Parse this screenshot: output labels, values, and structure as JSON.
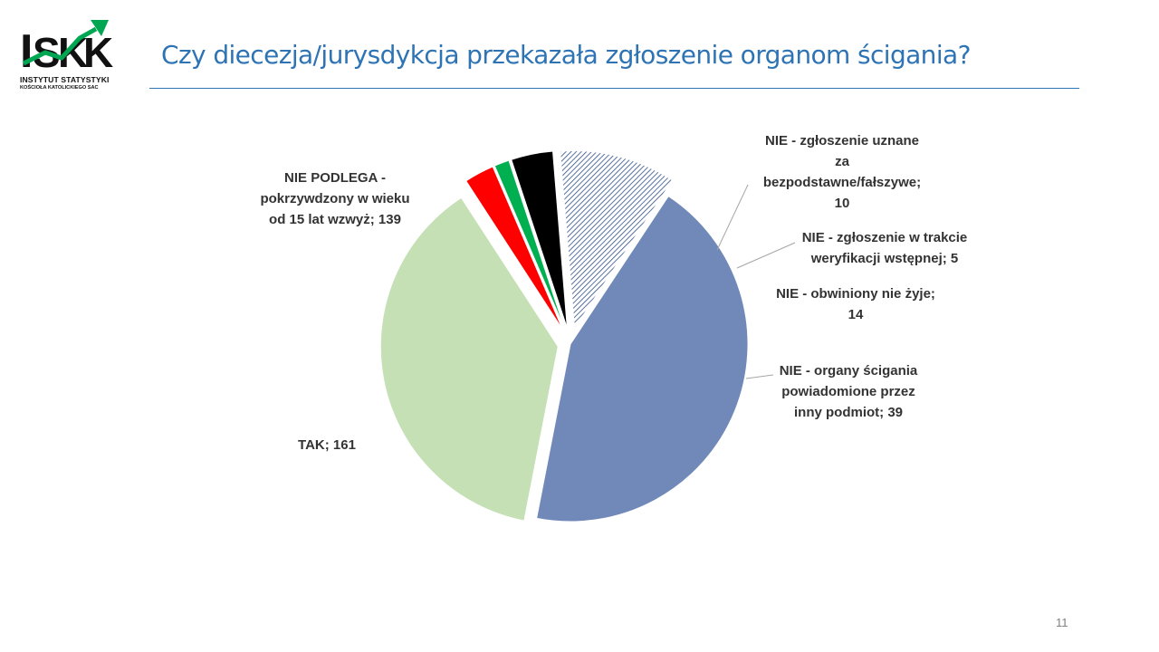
{
  "title": "Czy diecezja/jurysdykcja przekazała zgłoszenie organom ścigania?",
  "logo": {
    "letters": "ISKK",
    "line1": "INSTYTUT STATYSTYKI",
    "line2": "KOŚCIOŁA KATOLICKIEGO SAC"
  },
  "page_number": "11",
  "colors": {
    "title": "#2E74B5",
    "tak": "#7089B8",
    "nie_podlega": "#C5E0B4",
    "bezpodstawne": "#FF0000",
    "weryfikacja": "#00B050",
    "obwiniony": "#000000",
    "inny_podmiot": "#2F4F8A"
  },
  "chart_data": {
    "type": "pie",
    "title": "",
    "slices": [
      {
        "name": "TAK",
        "value": 161,
        "label_lines": [
          "TAK; 161"
        ]
      },
      {
        "name": "NIE PODLEGA - pokrzywdzony w wieku od 15 lat wzwyż",
        "value": 139,
        "label_lines": [
          "NIE PODLEGA -",
          "pokrzywdzony w wieku",
          "od 15 lat wzwyż; 139"
        ]
      },
      {
        "name": "NIE - zgłoszenie uznane za bezpodstawne/fałszywe",
        "value": 10,
        "label_lines": [
          "NIE - zgłoszenie uznane",
          "za",
          "bezpodstawne/fałszywe;",
          "10"
        ]
      },
      {
        "name": "NIE - zgłoszenie w trakcie weryfikacji wstępnej",
        "value": 5,
        "label_lines": [
          "NIE - zgłoszenie w trakcie",
          "weryfikacji wstępnej; 5"
        ]
      },
      {
        "name": "NIE - obwiniony nie żyje",
        "value": 14,
        "label_lines": [
          "NIE - obwiniony nie żyje;",
          "14"
        ]
      },
      {
        "name": "NIE - organy ścigania powiadomione przez inny podmiot",
        "value": 39,
        "label_lines": [
          "NIE - organy ścigania",
          "powiadomione przez",
          "inny podmiot; 39"
        ]
      }
    ],
    "legend": "none",
    "slice_colors": [
      "#7089B8",
      "#C5E0B4",
      "#FF0000",
      "#00B050",
      "#000000",
      "#2F4F8A"
    ],
    "pattern_slice": "NIE - organy ścigania powiadomione przez inny podmiot"
  }
}
